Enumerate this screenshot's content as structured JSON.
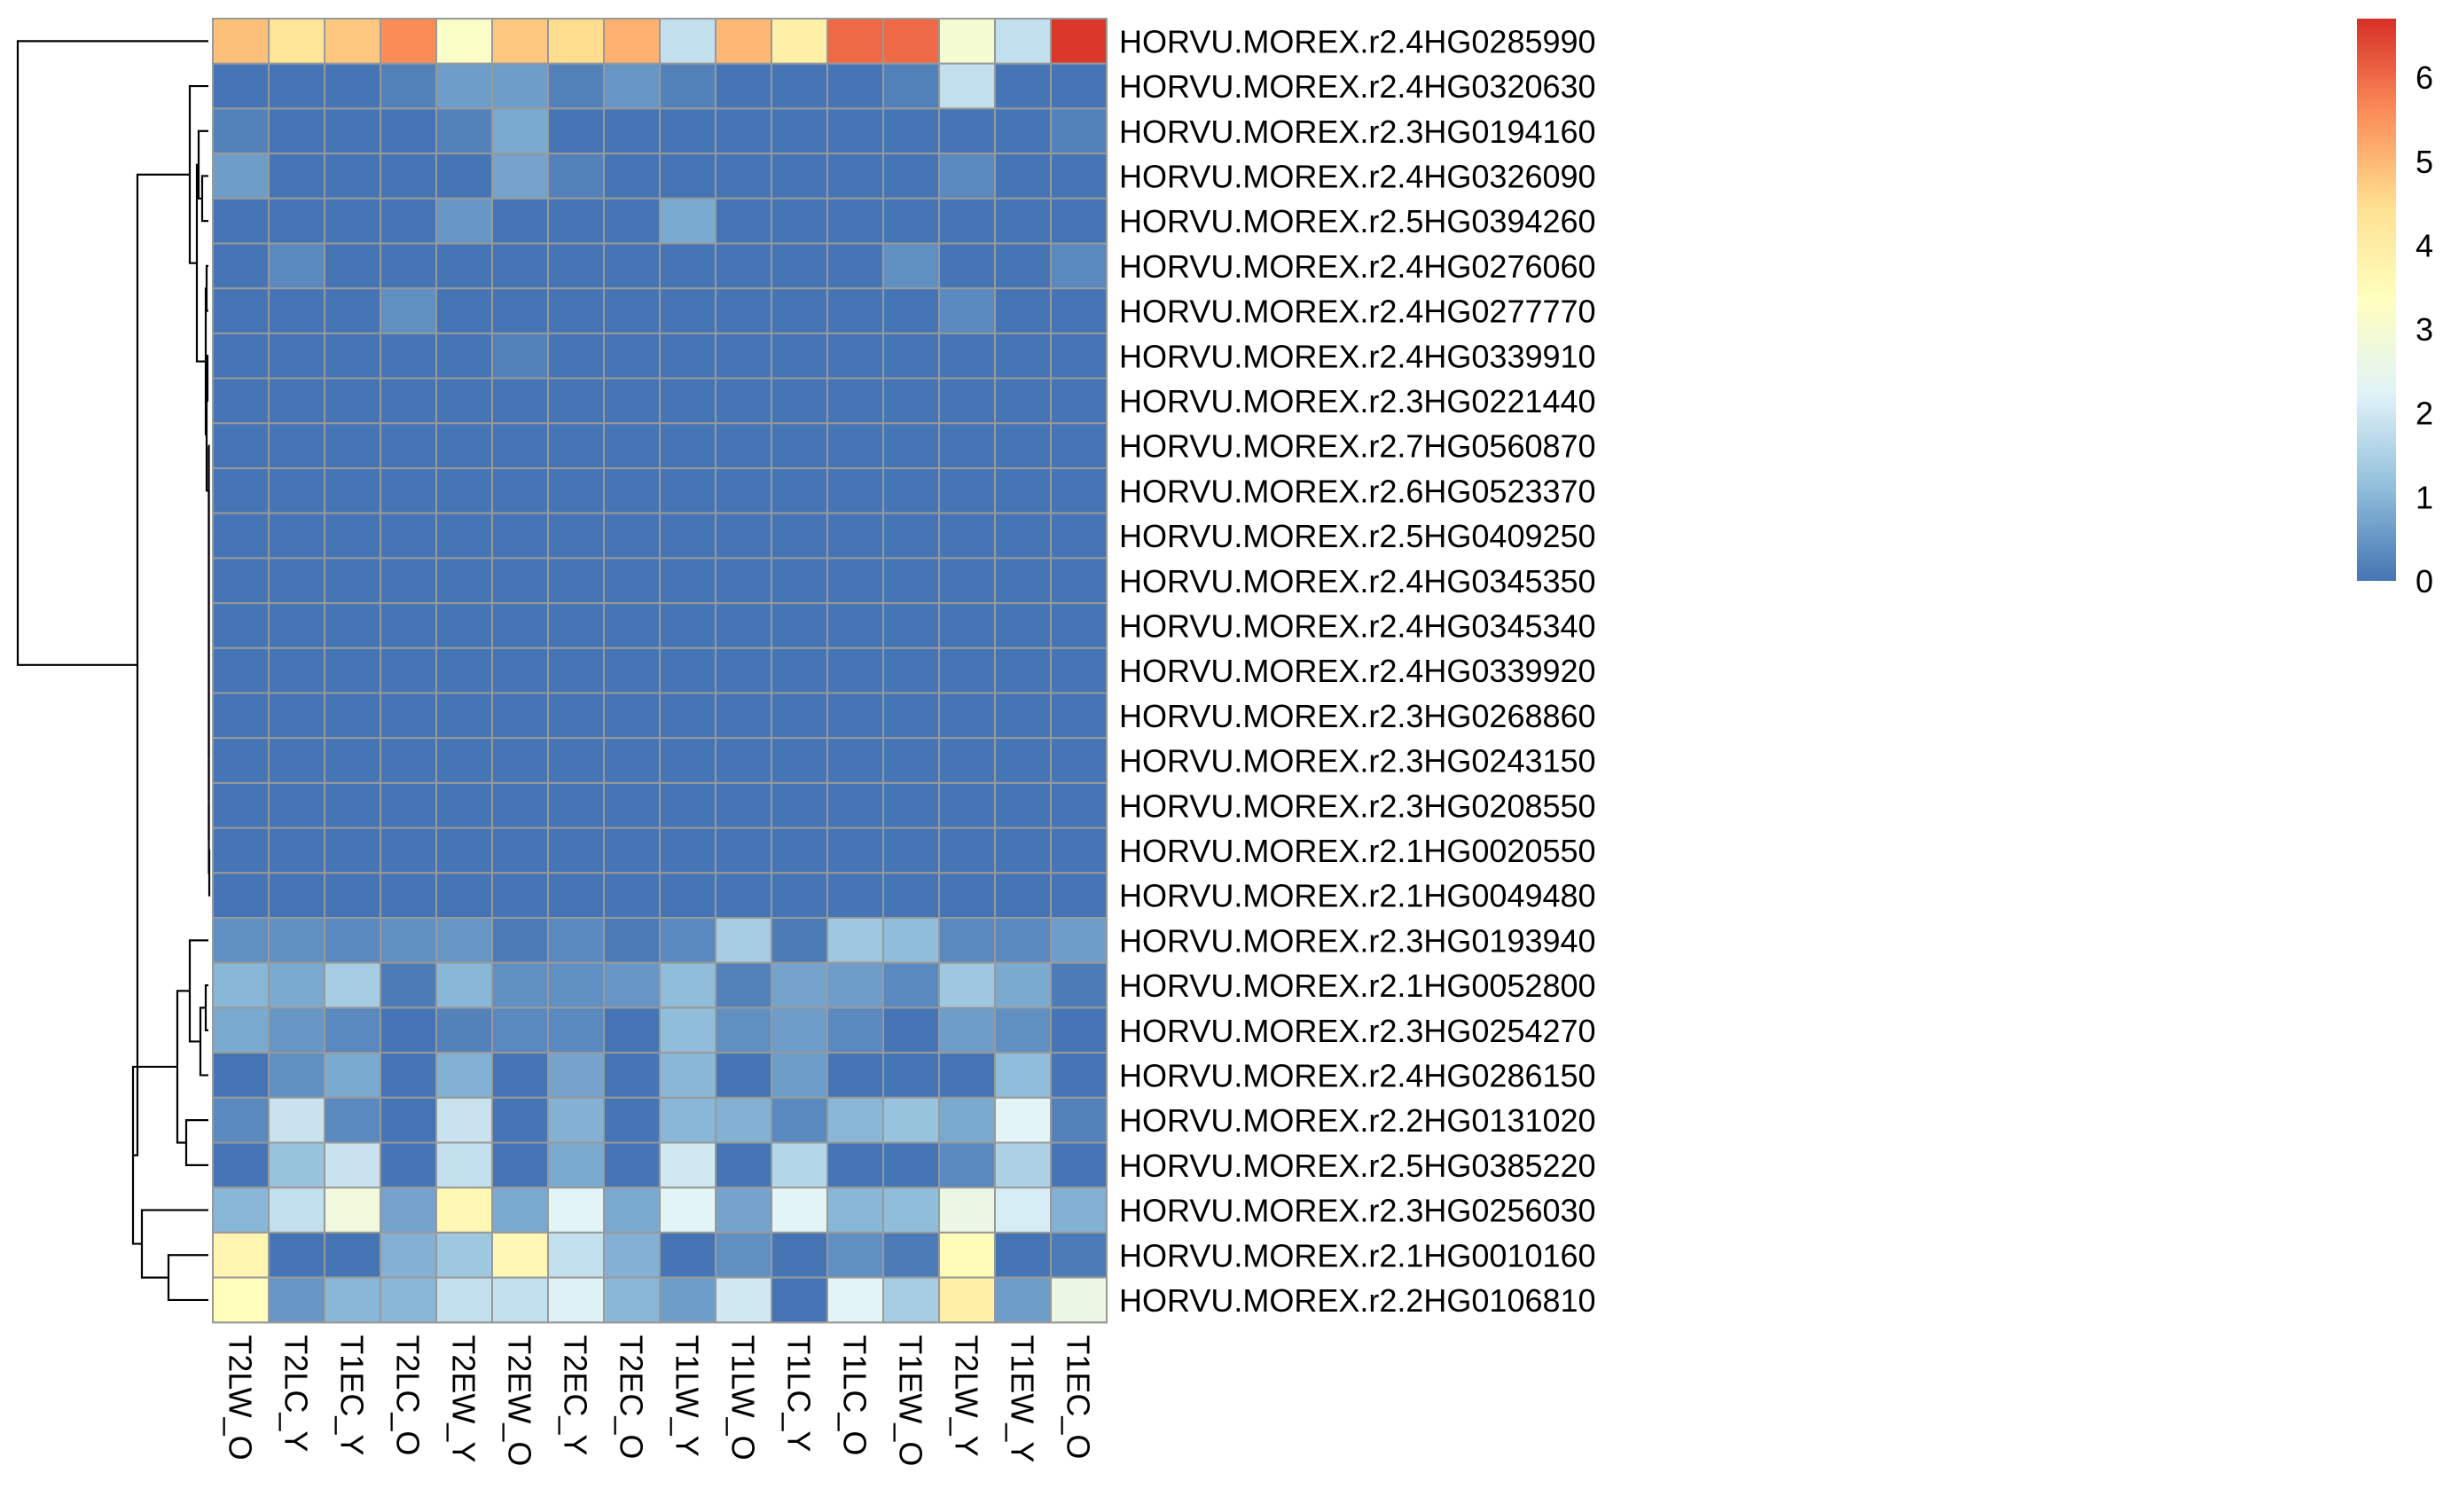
{
  "chart_data": {
    "type": "heatmap",
    "title": "",
    "xlabel": "",
    "ylabel": "",
    "columns": [
      "T2LW_O",
      "T2LC_Y",
      "T1EC_Y",
      "T2LC_O",
      "T2EW_Y",
      "T2EW_O",
      "T2EC_Y",
      "T2EC_O",
      "T1LW_Y",
      "T1LW_O",
      "T1LC_Y",
      "T1LC_O",
      "T1EW_O",
      "T2LW_Y",
      "T1EW_Y",
      "T1EC_O"
    ],
    "rows": [
      "HORVU.MOREX.r2.4HG0285990",
      "HORVU.MOREX.r2.4HG0320630",
      "HORVU.MOREX.r2.3HG0194160",
      "HORVU.MOREX.r2.4HG0326090",
      "HORVU.MOREX.r2.5HG0394260",
      "HORVU.MOREX.r2.4HG0276060",
      "HORVU.MOREX.r2.4HG0277770",
      "HORVU.MOREX.r2.4HG0339910",
      "HORVU.MOREX.r2.3HG0221440",
      "HORVU.MOREX.r2.7HG0560870",
      "HORVU.MOREX.r2.6HG0523370",
      "HORVU.MOREX.r2.5HG0409250",
      "HORVU.MOREX.r2.4HG0345350",
      "HORVU.MOREX.r2.4HG0345340",
      "HORVU.MOREX.r2.4HG0339920",
      "HORVU.MOREX.r2.3HG0268860",
      "HORVU.MOREX.r2.3HG0243150",
      "HORVU.MOREX.r2.3HG0208550",
      "HORVU.MOREX.r2.1HG0020550",
      "HORVU.MOREX.r2.1HG0049480",
      "HORVU.MOREX.r2.3HG0193940",
      "HORVU.MOREX.r2.1HG0052800",
      "HORVU.MOREX.r2.3HG0254270",
      "HORVU.MOREX.r2.4HG0286150",
      "HORVU.MOREX.r2.2HG0131020",
      "HORVU.MOREX.r2.5HG0385220",
      "HORVU.MOREX.r2.3HG0256030",
      "HORVU.MOREX.r2.1HG0010160",
      "HORVU.MOREX.r2.2HG0106810"
    ],
    "values": [
      [
        4.9,
        4.3,
        4.8,
        5.6,
        3.2,
        4.8,
        4.5,
        5.1,
        1.8,
        5.0,
        3.9,
        6.0,
        6.0,
        3.0,
        1.8,
        6.6
      ],
      [
        0.0,
        0.0,
        0.0,
        0.2,
        0.6,
        0.6,
        0.2,
        0.5,
        0.2,
        0.0,
        0.0,
        0.0,
        0.2,
        1.8,
        0.0,
        0.0
      ],
      [
        0.2,
        0.0,
        0.0,
        0.0,
        0.2,
        0.8,
        0.0,
        0.0,
        0.0,
        0.0,
        0.0,
        0.0,
        0.0,
        0.0,
        0.0,
        0.2
      ],
      [
        0.6,
        0.0,
        0.0,
        0.0,
        0.0,
        0.7,
        0.2,
        0.0,
        0.0,
        0.0,
        0.0,
        0.0,
        0.0,
        0.3,
        0.0,
        0.0
      ],
      [
        0.0,
        0.0,
        0.0,
        0.0,
        0.5,
        0.0,
        0.0,
        0.0,
        0.8,
        0.0,
        0.0,
        0.0,
        0.0,
        0.0,
        0.0,
        0.0
      ],
      [
        0.0,
        0.3,
        0.0,
        0.0,
        0.0,
        0.0,
        0.0,
        0.0,
        0.0,
        0.0,
        0.0,
        0.0,
        0.4,
        0.0,
        0.0,
        0.3
      ],
      [
        0.0,
        0.0,
        0.0,
        0.4,
        0.0,
        0.0,
        0.0,
        0.0,
        0.0,
        0.0,
        0.0,
        0.0,
        0.0,
        0.3,
        0.0,
        0.0
      ],
      [
        0.0,
        0.0,
        0.0,
        0.0,
        0.0,
        0.2,
        0.0,
        0.0,
        0.0,
        0.0,
        0.0,
        0.0,
        0.0,
        0.0,
        0.0,
        0.0
      ],
      [
        0.0,
        0.0,
        0.0,
        0.0,
        0.0,
        0.0,
        0.0,
        0.0,
        0.0,
        0.0,
        0.0,
        0.0,
        0.0,
        0.0,
        0.0,
        0.0
      ],
      [
        0.0,
        0.0,
        0.0,
        0.0,
        0.0,
        0.0,
        0.0,
        0.0,
        0.0,
        0.0,
        0.0,
        0.0,
        0.0,
        0.0,
        0.0,
        0.0
      ],
      [
        0.0,
        0.0,
        0.0,
        0.0,
        0.0,
        0.0,
        0.0,
        0.0,
        0.0,
        0.0,
        0.0,
        0.0,
        0.0,
        0.0,
        0.0,
        0.0
      ],
      [
        0.0,
        0.0,
        0.0,
        0.0,
        0.0,
        0.0,
        0.0,
        0.0,
        0.0,
        0.0,
        0.0,
        0.0,
        0.0,
        0.0,
        0.0,
        0.0
      ],
      [
        0.0,
        0.0,
        0.0,
        0.0,
        0.0,
        0.0,
        0.0,
        0.0,
        0.0,
        0.0,
        0.0,
        0.0,
        0.0,
        0.0,
        0.0,
        0.0
      ],
      [
        0.0,
        0.0,
        0.0,
        0.0,
        0.0,
        0.0,
        0.0,
        0.0,
        0.0,
        0.0,
        0.0,
        0.0,
        0.0,
        0.0,
        0.0,
        0.0
      ],
      [
        0.0,
        0.0,
        0.0,
        0.0,
        0.0,
        0.0,
        0.0,
        0.0,
        0.0,
        0.0,
        0.0,
        0.0,
        0.0,
        0.0,
        0.0,
        0.0
      ],
      [
        0.0,
        0.0,
        0.0,
        0.0,
        0.0,
        0.0,
        0.0,
        0.0,
        0.0,
        0.0,
        0.0,
        0.0,
        0.0,
        0.0,
        0.0,
        0.0
      ],
      [
        0.0,
        0.0,
        0.0,
        0.0,
        0.0,
        0.0,
        0.0,
        0.0,
        0.0,
        0.0,
        0.0,
        0.0,
        0.0,
        0.0,
        0.0,
        0.0
      ],
      [
        0.0,
        0.0,
        0.0,
        0.0,
        0.0,
        0.0,
        0.0,
        0.0,
        0.0,
        0.0,
        0.0,
        0.0,
        0.0,
        0.0,
        0.0,
        0.0
      ],
      [
        0.0,
        0.0,
        0.0,
        0.0,
        0.0,
        0.0,
        0.0,
        0.0,
        0.0,
        0.0,
        0.0,
        0.0,
        0.0,
        0.0,
        0.0,
        0.0
      ],
      [
        0.0,
        0.0,
        0.0,
        0.0,
        0.0,
        0.0,
        0.0,
        0.0,
        0.0,
        0.0,
        0.0,
        0.0,
        0.0,
        0.0,
        0.0,
        0.0
      ],
      [
        0.4,
        0.4,
        0.3,
        0.4,
        0.5,
        0.1,
        0.3,
        0.1,
        0.3,
        1.4,
        0.1,
        1.3,
        1.1,
        0.3,
        0.3,
        0.6
      ],
      [
        1.0,
        0.8,
        1.4,
        0.1,
        1.0,
        0.4,
        0.4,
        0.5,
        1.1,
        0.2,
        0.7,
        0.6,
        0.3,
        1.3,
        0.8,
        0.1
      ],
      [
        0.8,
        0.5,
        0.3,
        0.0,
        0.2,
        0.3,
        0.3,
        0.0,
        1.1,
        0.4,
        0.6,
        0.3,
        0.0,
        0.6,
        0.4,
        0.0
      ],
      [
        0.0,
        0.4,
        0.8,
        0.0,
        0.9,
        0.0,
        0.7,
        0.0,
        1.0,
        0.0,
        0.6,
        0.0,
        0.0,
        0.0,
        1.1,
        0.0
      ],
      [
        0.3,
        1.9,
        0.3,
        0.0,
        1.9,
        0.0,
        0.9,
        0.0,
        1.0,
        0.9,
        0.3,
        1.0,
        1.2,
        0.8,
        2.3,
        0.2
      ],
      [
        0.0,
        1.2,
        1.9,
        0.0,
        1.8,
        0.0,
        0.8,
        0.0,
        2.0,
        0.0,
        1.6,
        0.0,
        0.0,
        0.3,
        1.5,
        0.0
      ],
      [
        1.0,
        1.8,
        2.8,
        0.7,
        3.6,
        0.8,
        2.3,
        0.8,
        2.3,
        0.7,
        2.3,
        1.0,
        1.1,
        2.6,
        2.1,
        0.9
      ],
      [
        3.7,
        0.0,
        0.0,
        0.9,
        1.3,
        3.6,
        1.8,
        0.9,
        0.0,
        0.4,
        0.0,
        0.4,
        0.1,
        3.5,
        0.0,
        0.1
      ],
      [
        3.4,
        0.5,
        1.0,
        1.0,
        1.8,
        1.8,
        2.2,
        1.0,
        0.6,
        2.0,
        0.0,
        2.3,
        1.4,
        3.9,
        0.6,
        2.6
      ]
    ],
    "colorbar": {
      "min": 0,
      "max": 6.7,
      "ticks": [
        0,
        1,
        2,
        3,
        4,
        5,
        6
      ],
      "colors": [
        "#4575B4",
        "#91BFDB",
        "#E0F3F8",
        "#FFFFBF",
        "#FEE090",
        "#FC8D59",
        "#D73027"
      ]
    },
    "cell_border_color": "#999999",
    "row_dendrogram": true
  }
}
